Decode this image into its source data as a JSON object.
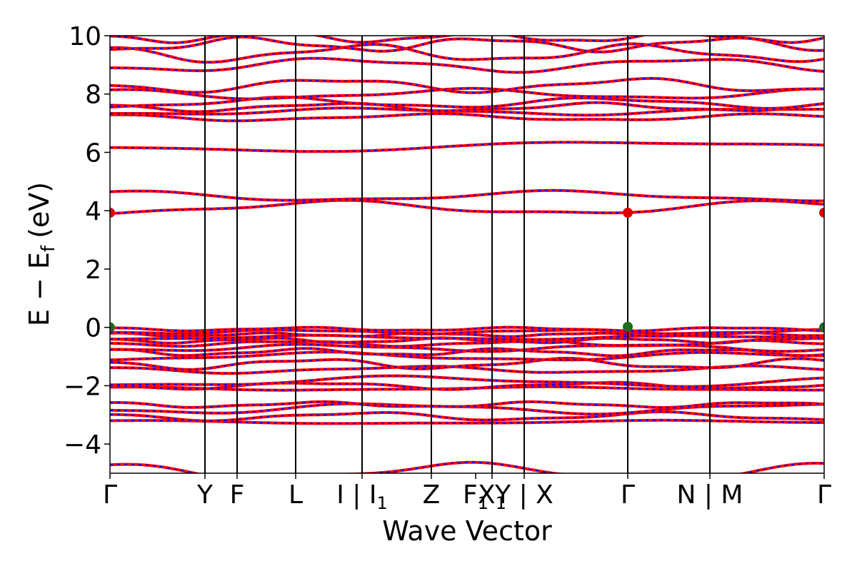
{
  "chart_data": {
    "type": "line",
    "title": "",
    "xlabel": "Wave Vector",
    "ylabel": "E − E",
    "ylabel_subscript": "f",
    "ylabel_unit": "(eV)",
    "ylim": [
      -5,
      10
    ],
    "yticks": [
      -4,
      -2,
      0,
      2,
      4,
      6,
      8,
      10
    ],
    "ytick_labels": [
      "−4",
      "−2",
      "0",
      "2",
      "4",
      "6",
      "8",
      "10"
    ],
    "xlim": [
      0,
      10.0
    ],
    "kpath": [
      {
        "label": "Γ",
        "sub": "",
        "x": 0.0
      },
      {
        "label": "Y",
        "sub": "",
        "x": 1.33
      },
      {
        "label": "F",
        "sub": "",
        "x": 1.78
      },
      {
        "label": "L",
        "sub": "",
        "x": 2.6
      },
      {
        "label": "I | I",
        "sub": "1",
        "x": 3.53
      },
      {
        "label": "Z",
        "sub": "",
        "x": 4.5
      },
      {
        "label": "F",
        "sub": "1",
        "x": 5.12
      },
      {
        "label": "X",
        "sub": "1",
        "x": 5.35
      },
      {
        "label": "Y | X",
        "sub": "",
        "x": 5.8
      },
      {
        "label": "Γ",
        "sub": "",
        "x": 7.25
      },
      {
        "label": "N | M",
        "sub": "",
        "x": 8.4
      },
      {
        "label": "Γ",
        "sub": "",
        "x": 10.0
      }
    ],
    "high_symmetry_lines": [
      1.33,
      1.78,
      2.6,
      3.53,
      4.5,
      5.35,
      5.8,
      7.25,
      8.4
    ],
    "series_colors": {
      "spin_up": "#ff0000",
      "spin_down": "#0000ff"
    },
    "band_extrema": {
      "cbm": [
        {
          "x": 0.0,
          "y": 3.93
        },
        {
          "x": 7.25,
          "y": 3.93
        },
        {
          "x": 10.0,
          "y": 3.93
        }
      ],
      "vbm": [
        {
          "x": 0.0,
          "y": 0.0
        },
        {
          "x": 7.25,
          "y": 0.02
        },
        {
          "x": 10.0,
          "y": 0.0
        }
      ]
    },
    "marker_colors": {
      "cbm": "#e00000",
      "vbm": "#1a6e1a"
    },
    "bands": [
      {
        "base": -4.95,
        "amp": 0.25,
        "freq": 1.2,
        "phase": 0.3
      },
      {
        "base": -3.25,
        "amp": 0.05,
        "freq": 0.8,
        "phase": 0.0
      },
      {
        "base": -3.05,
        "amp": 0.12,
        "freq": 1.5,
        "phase": 1.0
      },
      {
        "base": -2.78,
        "amp": 0.15,
        "freq": 1.1,
        "phase": 2.0
      },
      {
        "base": -2.65,
        "amp": 0.08,
        "freq": 2.0,
        "phase": 0.5
      },
      {
        "base": -2.1,
        "amp": 0.05,
        "freq": 1.0,
        "phase": 0.2
      },
      {
        "base": -2.0,
        "amp": 0.1,
        "freq": 1.6,
        "phase": 1.7
      },
      {
        "base": -1.85,
        "amp": 0.15,
        "freq": 0.9,
        "phase": 2.5
      },
      {
        "base": -1.45,
        "amp": 0.1,
        "freq": 1.3,
        "phase": 0.8
      },
      {
        "base": -1.25,
        "amp": 0.15,
        "freq": 1.8,
        "phase": 1.2
      },
      {
        "base": -1.0,
        "amp": 0.12,
        "freq": 1.1,
        "phase": 3.0
      },
      {
        "base": -0.85,
        "amp": 0.1,
        "freq": 2.2,
        "phase": 0.4
      },
      {
        "base": -0.7,
        "amp": 0.1,
        "freq": 1.4,
        "phase": 2.2
      },
      {
        "base": -0.55,
        "amp": 0.08,
        "freq": 1.9,
        "phase": 1.5
      },
      {
        "base": -0.45,
        "amp": 0.07,
        "freq": 2.5,
        "phase": 0.9
      },
      {
        "base": -0.35,
        "amp": 0.06,
        "freq": 1.2,
        "phase": 2.8
      },
      {
        "base": -0.25,
        "amp": 0.05,
        "freq": 2.8,
        "phase": 0.1
      },
      {
        "base": -0.15,
        "amp": 0.06,
        "freq": 1.7,
        "phase": 1.9
      },
      {
        "base": -0.06,
        "amp": 0.05,
        "freq": 2.1,
        "phase": 0.6
      },
      {
        "base": 4.1,
        "amp": 0.2,
        "freq": 1.0,
        "phase": 3.14
      },
      {
        "base": 4.5,
        "amp": 0.15,
        "freq": 1.0,
        "phase": 0.0
      },
      {
        "base": 6.2,
        "amp": 0.15,
        "freq": 0.6,
        "phase": 1.8
      },
      {
        "base": 7.2,
        "amp": 0.1,
        "freq": 1.3,
        "phase": 0.5
      },
      {
        "base": 7.4,
        "amp": 0.1,
        "freq": 1.1,
        "phase": 2.3
      },
      {
        "base": 7.55,
        "amp": 0.12,
        "freq": 1.7,
        "phase": 1.0
      },
      {
        "base": 7.7,
        "amp": 0.15,
        "freq": 1.4,
        "phase": 2.9
      },
      {
        "base": 8.0,
        "amp": 0.15,
        "freq": 1.2,
        "phase": 0.3
      },
      {
        "base": 8.3,
        "amp": 0.2,
        "freq": 1.5,
        "phase": 1.6
      },
      {
        "base": 9.0,
        "amp": 0.2,
        "freq": 1.3,
        "phase": 2.1
      },
      {
        "base": 9.4,
        "amp": 0.25,
        "freq": 1.6,
        "phase": 0.7
      },
      {
        "base": 9.7,
        "amp": 0.2,
        "freq": 1.9,
        "phase": 2.6
      },
      {
        "base": 9.95,
        "amp": 0.15,
        "freq": 2.2,
        "phase": 1.3
      }
    ]
  }
}
